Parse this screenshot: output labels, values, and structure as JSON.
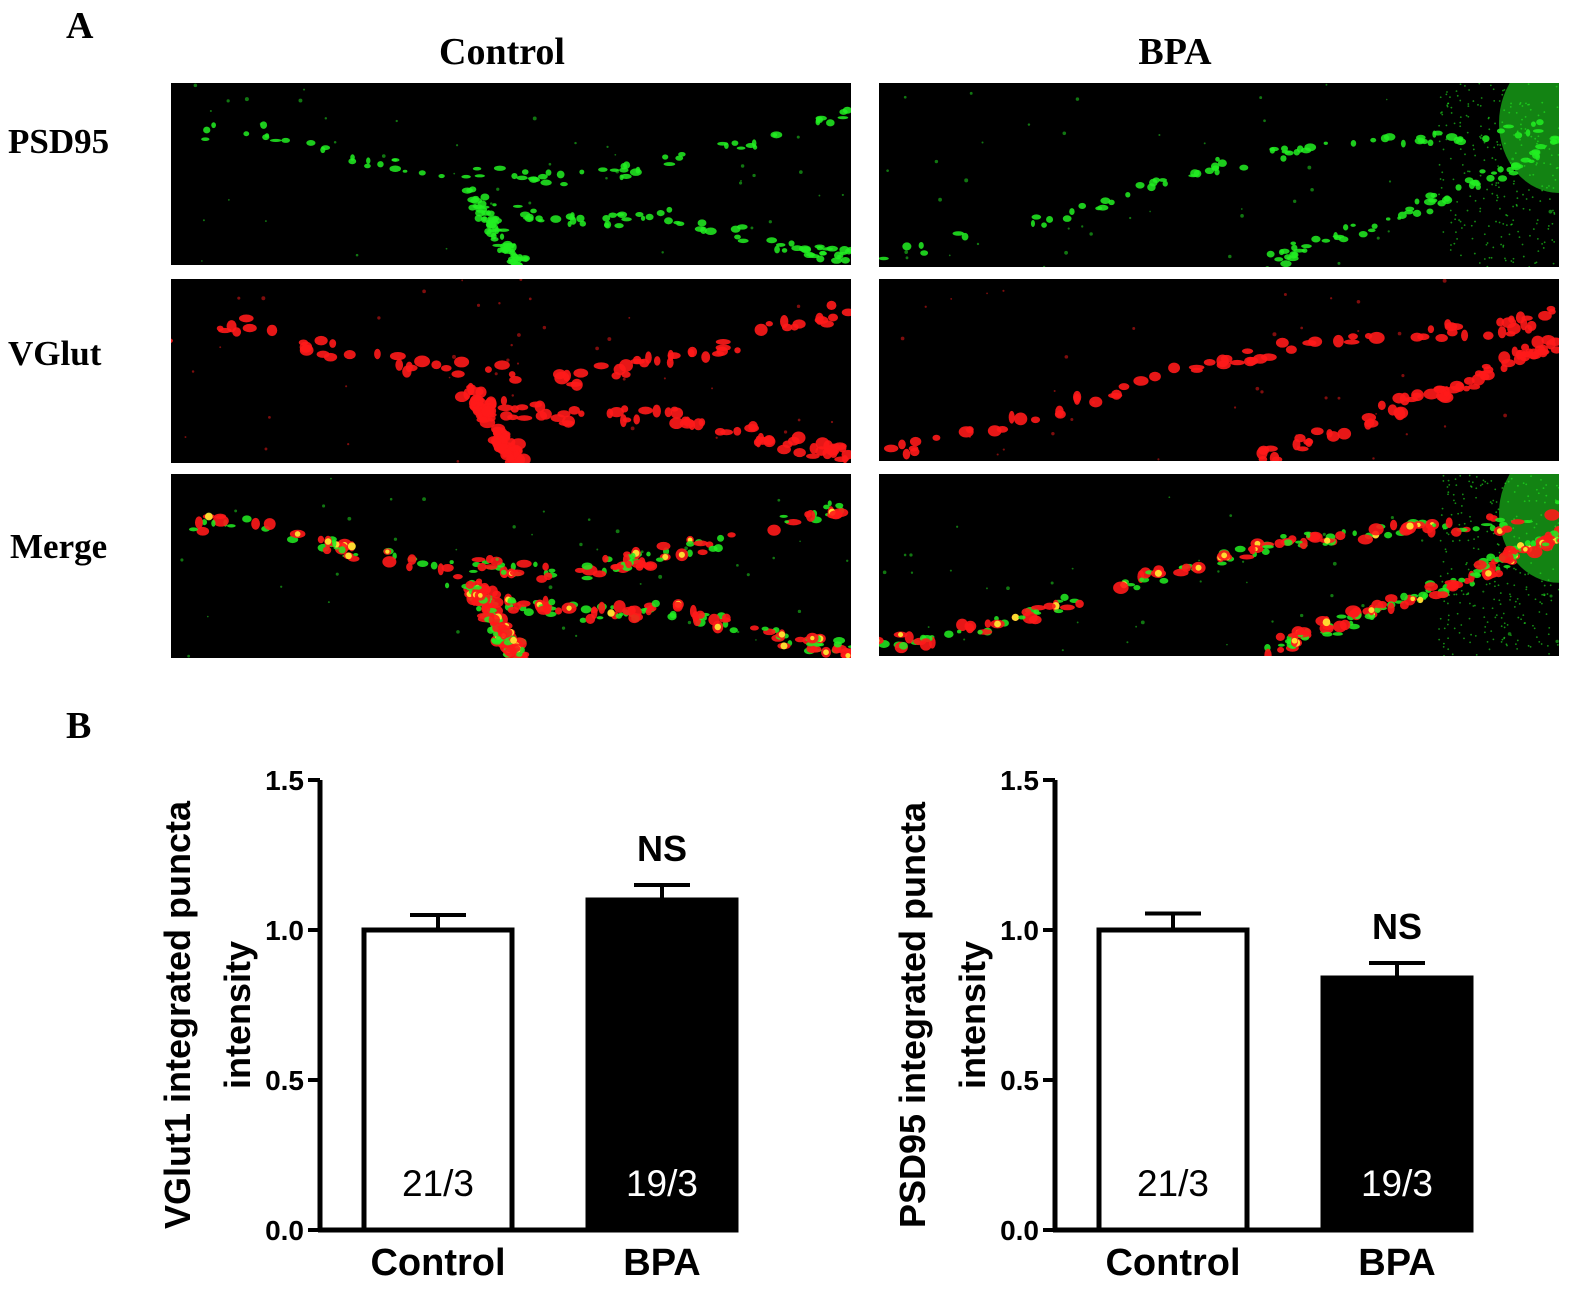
{
  "panel_a": {
    "label": "A",
    "columns": [
      "Control",
      "BPA"
    ],
    "rows": [
      "PSD95",
      "VGlut",
      "Merge"
    ],
    "colors": {
      "psd95": "#22ee22",
      "vglut": "#ff1a1a",
      "overlap": "#ffee33"
    }
  },
  "panel_b": {
    "label": "B"
  },
  "chart_data": [
    {
      "type": "bar",
      "categories": [
        "Control",
        "BPA"
      ],
      "values": [
        1.0,
        1.1
      ],
      "error": [
        0.05,
        0.05
      ],
      "bar_colors": [
        "#ffffff",
        "#000000"
      ],
      "n_labels": [
        "21/3",
        "19/3"
      ],
      "annotation": "NS",
      "title": "",
      "xlabel": "",
      "ylabel": "VGlut1 integrated puncta intensity",
      "ylim": [
        0,
        1.5
      ],
      "yticks": [
        "0.0",
        "0.5",
        "1.0",
        "1.5"
      ]
    },
    {
      "type": "bar",
      "categories": [
        "Control",
        "BPA"
      ],
      "values": [
        1.0,
        0.84
      ],
      "error": [
        0.055,
        0.05
      ],
      "bar_colors": [
        "#ffffff",
        "#000000"
      ],
      "n_labels": [
        "21/3",
        "19/3"
      ],
      "annotation": "NS",
      "title": "",
      "xlabel": "",
      "ylabel": "PSD95 integrated puncta intensity",
      "ylim": [
        0,
        1.5
      ],
      "yticks": [
        "0.0",
        "0.5",
        "1.0",
        "1.5"
      ]
    }
  ]
}
